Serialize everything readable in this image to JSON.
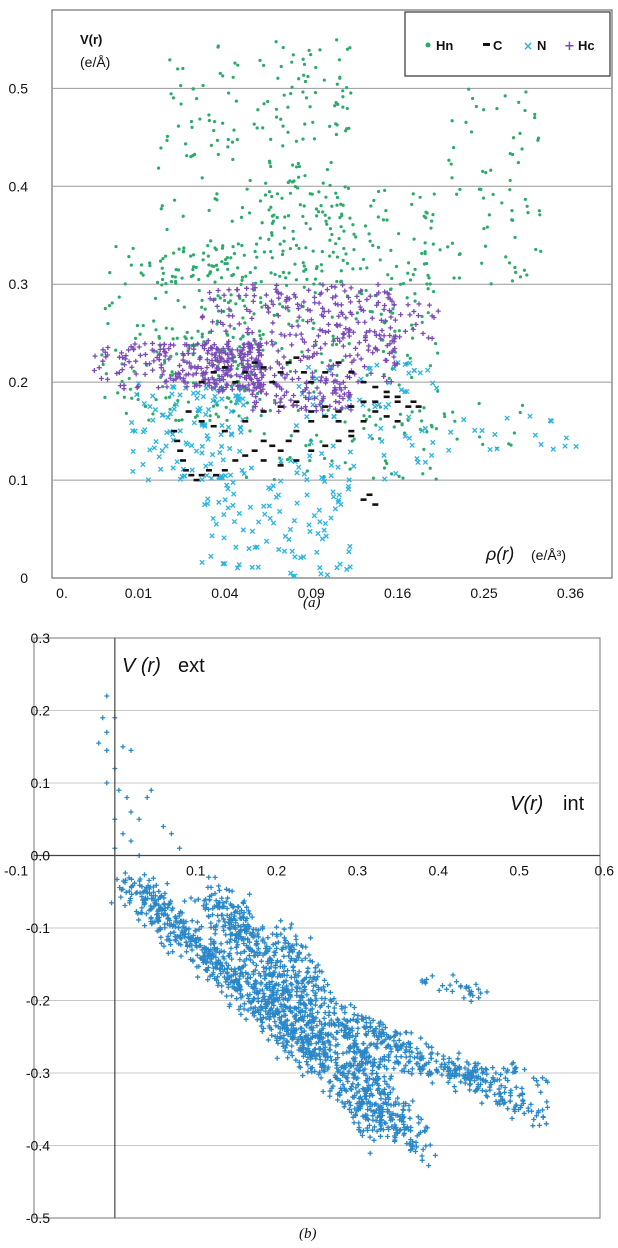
{
  "chart_data": [
    {
      "panel": "a",
      "type": "scatter",
      "caption": "(a)",
      "ylabel_symbol": "V(r)",
      "ylabel_unit": "(e/Å)",
      "xlabel_symbol": "ρ(r)",
      "xlabel_unit": "(e/Å³)",
      "x_scale": "sqrt",
      "xlim": [
        0,
        0.42
      ],
      "ylim": [
        0,
        0.58
      ],
      "x_ticks": [
        0,
        0.01,
        0.04,
        0.09,
        0.16,
        0.25,
        0.36
      ],
      "x_tick_labels": [
        "0.",
        "0.01",
        "0.04",
        "0.09",
        "0.16",
        "0.25",
        "0.36"
      ],
      "y_ticks": [
        0,
        0.1,
        0.2,
        0.3,
        0.4,
        0.5
      ],
      "y_tick_labels": [
        "0",
        "0.1",
        "0.2",
        "0.3",
        "0.4",
        "0.5"
      ],
      "grid": "horizontal",
      "legend_position": "top-right",
      "legend": [
        "Hn",
        "C",
        "N",
        "Hc"
      ],
      "colors": {
        "Hn": "#2bab6a",
        "C": "#111111",
        "N": "#2ab3e0",
        "Hc": "#7a4bb8"
      },
      "series": [
        {
          "name": "Hn",
          "marker": "dot",
          "clusters": [
            {
              "x": [
                0.003,
                0.06
              ],
              "y": [
                0.16,
                0.34
              ],
              "n": 260
            },
            {
              "x": [
                0.015,
                0.12
              ],
              "y": [
                0.3,
                0.55
              ],
              "n": 230
            },
            {
              "x": [
                0.06,
                0.2
              ],
              "y": [
                0.26,
                0.4
              ],
              "n": 140
            },
            {
              "x": [
                0.2,
                0.32
              ],
              "y": [
                0.3,
                0.5
              ],
              "n": 70
            },
            {
              "x": [
                0.05,
                0.2
              ],
              "y": [
                0.1,
                0.26
              ],
              "n": 110
            },
            {
              "x": [
                0.2,
                0.3
              ],
              "y": [
                0.13,
                0.18
              ],
              "n": 14
            }
          ]
        },
        {
          "name": "C",
          "marker": "dash",
          "points": [
            [
              0.02,
              0.15
            ],
            [
              0.021,
              0.14
            ],
            [
              0.022,
              0.13
            ],
            [
              0.023,
              0.12
            ],
            [
              0.024,
              0.11
            ],
            [
              0.026,
              0.105
            ],
            [
              0.028,
              0.1
            ],
            [
              0.03,
              0.105
            ],
            [
              0.033,
              0.11
            ],
            [
              0.036,
              0.105
            ],
            [
              0.04,
              0.11
            ],
            [
              0.045,
              0.12
            ],
            [
              0.05,
              0.125
            ],
            [
              0.055,
              0.13
            ],
            [
              0.06,
              0.14
            ],
            [
              0.065,
              0.135
            ],
            [
              0.07,
              0.13
            ],
            [
              0.075,
              0.14
            ],
            [
              0.08,
              0.15
            ],
            [
              0.09,
              0.16
            ],
            [
              0.1,
              0.165
            ],
            [
              0.11,
              0.17
            ],
            [
              0.12,
              0.175
            ],
            [
              0.13,
              0.18
            ],
            [
              0.14,
              0.18
            ],
            [
              0.15,
              0.185
            ],
            [
              0.16,
              0.18
            ],
            [
              0.17,
              0.175
            ],
            [
              0.175,
              0.18
            ],
            [
              0.18,
              0.175
            ],
            [
              0.03,
              0.2
            ],
            [
              0.035,
              0.21
            ],
            [
              0.04,
              0.215
            ],
            [
              0.045,
              0.2
            ],
            [
              0.05,
              0.21
            ],
            [
              0.055,
              0.22
            ],
            [
              0.06,
              0.215
            ],
            [
              0.065,
              0.2
            ],
            [
              0.07,
              0.21
            ],
            [
              0.075,
              0.22
            ],
            [
              0.08,
              0.225
            ],
            [
              0.085,
              0.21
            ],
            [
              0.09,
              0.2
            ],
            [
              0.1,
              0.21
            ],
            [
              0.11,
              0.22
            ],
            [
              0.12,
              0.21
            ],
            [
              0.13,
              0.2
            ],
            [
              0.14,
              0.195
            ],
            [
              0.15,
              0.19
            ],
            [
              0.16,
              0.185
            ],
            [
              0.025,
              0.17
            ],
            [
              0.03,
              0.16
            ],
            [
              0.035,
              0.155
            ],
            [
              0.04,
              0.15
            ],
            [
              0.05,
              0.16
            ],
            [
              0.06,
              0.17
            ],
            [
              0.07,
              0.175
            ],
            [
              0.08,
              0.18
            ],
            [
              0.09,
              0.17
            ],
            [
              0.1,
              0.175
            ],
            [
              0.11,
              0.16
            ],
            [
              0.12,
              0.15
            ],
            [
              0.13,
              0.16
            ],
            [
              0.14,
              0.17
            ],
            [
              0.15,
              0.165
            ],
            [
              0.16,
              0.16
            ],
            [
              0.13,
              0.08
            ],
            [
              0.135,
              0.085
            ],
            [
              0.14,
              0.075
            ],
            [
              0.06,
              0.12
            ],
            [
              0.07,
              0.115
            ],
            [
              0.08,
              0.12
            ],
            [
              0.09,
              0.13
            ],
            [
              0.1,
              0.135
            ],
            [
              0.11,
              0.14
            ],
            [
              0.12,
              0.145
            ]
          ]
        },
        {
          "name": "N",
          "marker": "x",
          "clusters": [
            {
              "x": [
                0.008,
                0.05
              ],
              "y": [
                0.1,
                0.2
              ],
              "n": 110
            },
            {
              "x": [
                0.03,
                0.12
              ],
              "y": [
                0.0,
                0.12
              ],
              "n": 110
            },
            {
              "x": [
                0.08,
                0.2
              ],
              "y": [
                0.1,
                0.22
              ],
              "n": 70
            },
            {
              "x": [
                0.2,
                0.37
              ],
              "y": [
                0.13,
                0.17
              ],
              "n": 18
            }
          ]
        },
        {
          "name": "Hc",
          "marker": "plus",
          "clusters": [
            {
              "x": [
                0.002,
                0.06
              ],
              "y": [
                0.19,
                0.24
              ],
              "n": 280
            },
            {
              "x": [
                0.03,
                0.16
              ],
              "y": [
                0.2,
                0.3
              ],
              "n": 260
            },
            {
              "x": [
                0.1,
                0.2
              ],
              "y": [
                0.24,
                0.28
              ],
              "n": 50
            },
            {
              "x": [
                0.05,
                0.12
              ],
              "y": [
                0.17,
                0.2
              ],
              "n": 80
            }
          ]
        }
      ]
    },
    {
      "panel": "b",
      "type": "scatter",
      "caption": "(b)",
      "ylabel_symbol": "V (r)",
      "ylabel_suffix": "ext",
      "xlabel_symbol": "V(r)",
      "xlabel_suffix": "int",
      "xlim": [
        -0.1,
        0.6
      ],
      "ylim": [
        -0.5,
        0.3
      ],
      "x_ticks": [
        -0.1,
        0.1,
        0.2,
        0.3,
        0.4,
        0.5,
        0.6
      ],
      "x_tick_labels": [
        "-0.1",
        "0.1",
        "0.2",
        "0.3",
        "0.4",
        "0.5",
        "0.6"
      ],
      "y_ticks": [
        0.3,
        0.2,
        0.1,
        0.0,
        -0.1,
        -0.2,
        -0.3,
        -0.4,
        -0.5
      ],
      "y_tick_labels": [
        "0.3",
        "0.2",
        "0.1",
        "0.0",
        "-0.1",
        "-0.2",
        "-0.3",
        "-0.4",
        "-0.5"
      ],
      "grid": "horizontal",
      "colors": {
        "points": "#2a87c8"
      },
      "series": [
        {
          "marker": "plus",
          "points": [
            [
              -0.01,
              0.22
            ],
            [
              -0.015,
              0.19
            ],
            [
              -0.01,
              0.17
            ],
            [
              0.0,
              0.19
            ],
            [
              -0.02,
              0.155
            ],
            [
              -0.01,
              0.145
            ],
            [
              0.01,
              0.15
            ],
            [
              0.02,
              0.145
            ],
            [
              0.0,
              0.12
            ],
            [
              -0.01,
              0.1
            ],
            [
              0.005,
              0.09
            ],
            [
              0.015,
              0.08
            ],
            [
              0.0,
              0.05
            ],
            [
              0.02,
              0.06
            ],
            [
              0.03,
              0.05
            ],
            [
              0.01,
              0.03
            ],
            [
              0.0,
              0.01
            ],
            [
              0.02,
              0.02
            ],
            [
              0.04,
              0.08
            ],
            [
              0.045,
              0.09
            ],
            [
              0.06,
              0.04
            ],
            [
              0.07,
              0.03
            ],
            [
              0.08,
              0.01
            ],
            [
              0.03,
              0.0
            ]
          ],
          "bands": [
            {
              "x0": 0.02,
              "y0": -0.04,
              "x1": 0.25,
              "y1": -0.28,
              "spread": 0.06,
              "n": 600
            },
            {
              "x0": 0.12,
              "y0": -0.05,
              "x1": 0.33,
              "y1": -0.38,
              "spread": 0.07,
              "n": 700
            },
            {
              "x0": 0.2,
              "y0": -0.1,
              "x1": 0.38,
              "y1": -0.41,
              "spread": 0.05,
              "n": 350
            },
            {
              "x0": 0.28,
              "y0": -0.22,
              "x1": 0.53,
              "y1": -0.36,
              "spread": 0.05,
              "n": 260
            },
            {
              "x0": 0.3,
              "y0": -0.28,
              "x1": 0.53,
              "y1": -0.31,
              "spread": 0.04,
              "n": 140
            },
            {
              "x0": 0.38,
              "y0": -0.17,
              "x1": 0.47,
              "y1": -0.2,
              "spread": 0.03,
              "n": 30
            }
          ]
        }
      ]
    }
  ]
}
